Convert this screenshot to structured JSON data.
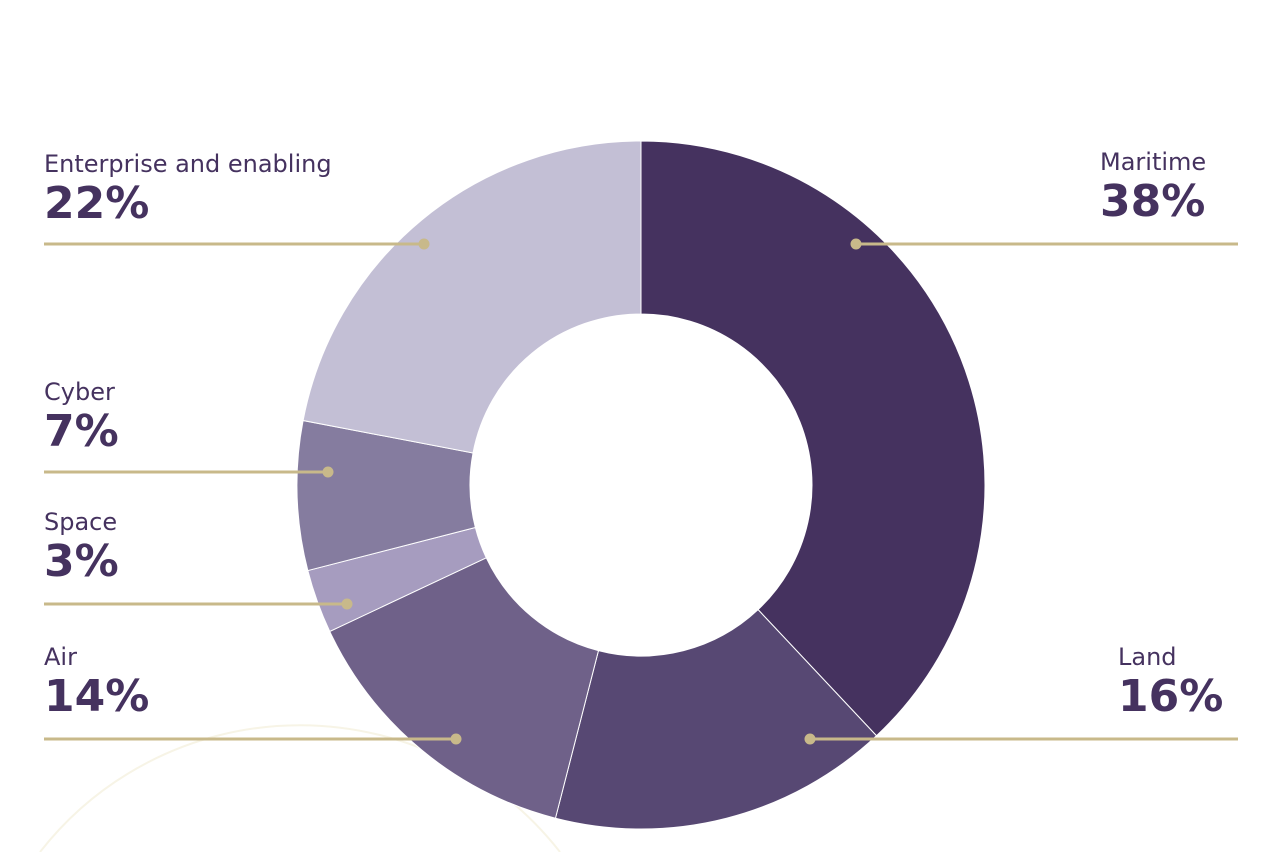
{
  "chart_data": {
    "type": "pie",
    "donut": true,
    "title": "",
    "categories": [
      "Maritime",
      "Land",
      "Air",
      "Space",
      "Cyber",
      "Enterprise and enabling"
    ],
    "values": [
      38,
      16,
      14,
      3,
      7,
      22
    ],
    "labels": [
      "38%",
      "16%",
      "14%",
      "3%",
      "7%",
      "22%"
    ],
    "colors": [
      "#45325f",
      "#574873",
      "#6f6189",
      "#a69cbf",
      "#857c9f",
      "#c3bfd5"
    ],
    "leader_color": "#c8b98a",
    "start": "top",
    "direction": "clockwise"
  }
}
